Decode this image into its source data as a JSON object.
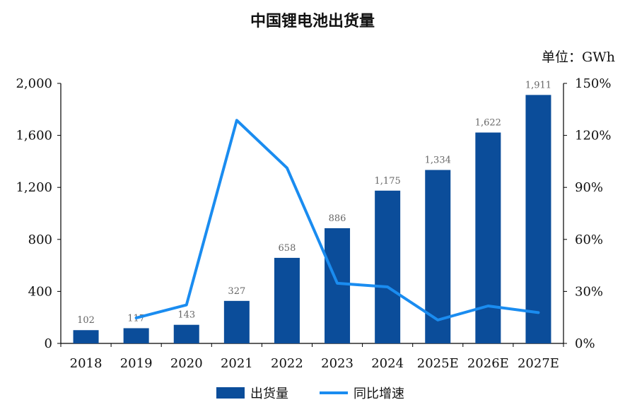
{
  "chart_data": {
    "type": "bar",
    "title": "中国锂电池出货量",
    "unit_label": "单位：GWh",
    "categories": [
      "2018",
      "2019",
      "2020",
      "2021",
      "2022",
      "2023",
      "2024",
      "2025E",
      "2026E",
      "2027E"
    ],
    "series": [
      {
        "name": "出货量",
        "type": "bar",
        "axis": "left",
        "color": "#0B4D9A",
        "values": [
          102,
          117,
          143,
          327,
          658,
          886,
          1175,
          1334,
          1622,
          1911
        ],
        "labels": [
          "102",
          "117",
          "143",
          "327",
          "658",
          "886",
          "1,175",
          "1,334",
          "1,622",
          "1,911"
        ]
      },
      {
        "name": "同比增速",
        "type": "line",
        "axis": "right",
        "color": "#1A8CF0",
        "values": [
          null,
          14.7,
          22.2,
          128.7,
          101.2,
          34.7,
          32.6,
          13.5,
          21.6,
          17.8
        ]
      }
    ],
    "left_axis": {
      "ylim": [
        0,
        2000
      ],
      "ticks": [
        0,
        400,
        800,
        1200,
        1600,
        2000
      ],
      "tick_labels": [
        "0",
        "400",
        "800",
        "1,200",
        "1,600",
        "2,000"
      ]
    },
    "right_axis": {
      "ylim": [
        0,
        150
      ],
      "ticks": [
        0,
        30,
        60,
        90,
        120,
        150
      ],
      "tick_labels": [
        "0%",
        "30%",
        "60%",
        "90%",
        "120%",
        "150%"
      ]
    },
    "grid": false,
    "legend": "bottom-center"
  }
}
